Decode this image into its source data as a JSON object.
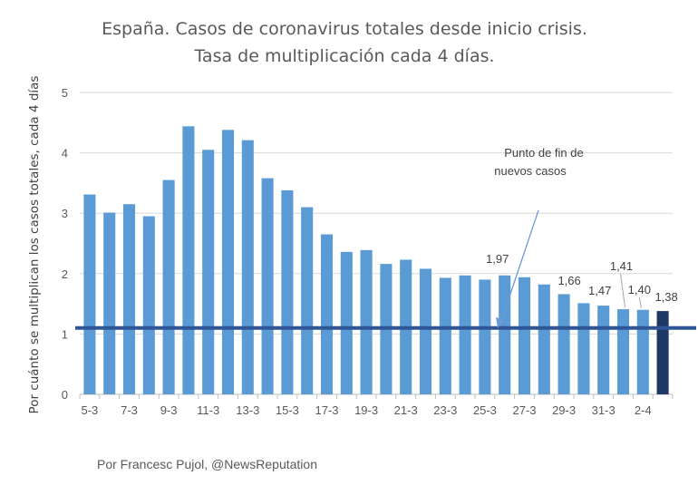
{
  "chart_data": {
    "type": "bar",
    "title_lines": [
      "España. Casos de coronavirus totales desde inicio crisis.",
      "Tasa de multiplicación cada 4 días."
    ],
    "ylabel": "Por cuánto se multiplican los casos totales, cada 4 días",
    "xlabel": "",
    "ylim": [
      0,
      5
    ],
    "yticks": [
      "0",
      "1",
      "2",
      "3",
      "4",
      "5"
    ],
    "grid": true,
    "categories": [
      "5-3",
      "6-3",
      "7-3",
      "8-3",
      "9-3",
      "10-3",
      "11-3",
      "12-3",
      "13-3",
      "14-3",
      "15-3",
      "16-3",
      "17-3",
      "18-3",
      "19-3",
      "20-3",
      "21-3",
      "22-3",
      "23-3",
      "24-3",
      "25-3",
      "26-3",
      "27-3",
      "28-3",
      "29-3",
      "30-3",
      "31-3",
      "1-4",
      "2-4",
      "3-4"
    ],
    "xtick_labels": [
      "5-3",
      "7-3",
      "9-3",
      "11-3",
      "13-3",
      "15-3",
      "17-3",
      "19-3",
      "21-3",
      "23-3",
      "25-3",
      "27-3",
      "29-3",
      "31-3",
      "2-4"
    ],
    "values": [
      3.31,
      3.01,
      3.15,
      2.95,
      3.55,
      4.44,
      4.05,
      4.38,
      4.21,
      3.58,
      3.38,
      3.1,
      2.65,
      2.36,
      2.39,
      2.16,
      2.23,
      2.08,
      1.93,
      1.97,
      1.9,
      1.97,
      1.94,
      1.82,
      1.66,
      1.51,
      1.47,
      1.41,
      1.4,
      1.38
    ],
    "data_labels": [
      {
        "index": 21,
        "text": "1,97"
      },
      {
        "index": 24,
        "text": "1,66"
      },
      {
        "index": 26,
        "text": "1,47"
      },
      {
        "index": 27,
        "text": "1,41"
      },
      {
        "index": 28,
        "text": "1,40"
      },
      {
        "index": 29,
        "text": "1,38"
      }
    ],
    "bar_color": "#5b9bd5",
    "highlight_color": "#1f3864",
    "highlight_index": 29,
    "reference_line": {
      "value": 1.1,
      "color": "#2f5597"
    },
    "annotation": {
      "lines": [
        "Punto de fin de",
        "nuevos casos"
      ]
    },
    "credit": "Por Francesc Pujol, @NewsReputation"
  }
}
